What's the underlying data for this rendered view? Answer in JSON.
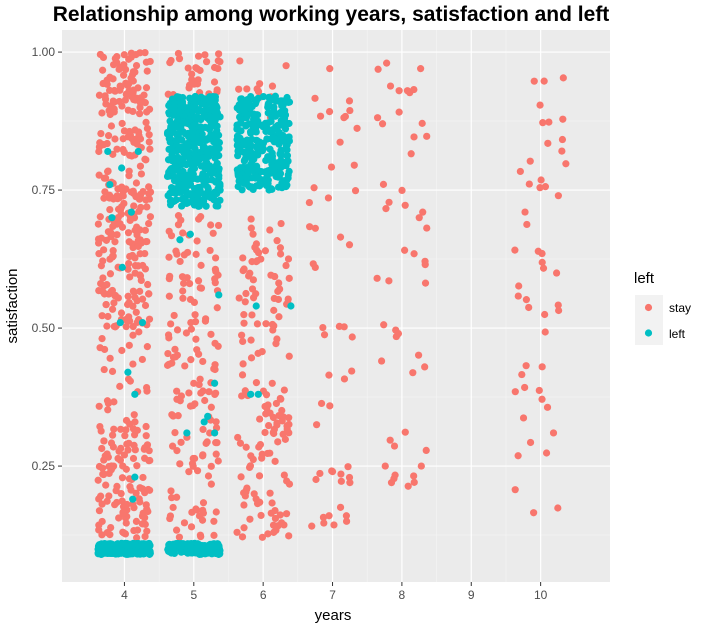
{
  "chart_data": {
    "type": "scatter",
    "title": "Relationship among working years, satisfaction and left",
    "xlabel": "years",
    "ylabel": "satisfaction",
    "xlim": [
      3.1,
      11.0
    ],
    "ylim": [
      0.04,
      1.04
    ],
    "x_ticks": [
      "4",
      "5",
      "6",
      "7",
      "8",
      "9",
      "10"
    ],
    "x_tick_values": [
      4,
      5,
      6,
      7,
      8,
      9,
      10
    ],
    "y_ticks": [
      "0.25",
      "0.50",
      "0.75",
      "1.00"
    ],
    "y_tick_values": [
      0.25,
      0.5,
      0.75,
      1.0
    ],
    "grid": true,
    "panel_background": "#ebebeb",
    "legend": {
      "title": "left",
      "position": "right",
      "entries": [
        {
          "label": "stay",
          "color": "#F8766D"
        },
        {
          "label": "left",
          "color": "#00BFC4"
        }
      ]
    },
    "jitter": 0.38,
    "series": [
      {
        "name": "stay",
        "color": "#F8766D",
        "clusters": [
          {
            "x": 4,
            "n": 300,
            "y_range": [
              0.5,
              1.0
            ]
          },
          {
            "x": 4,
            "n": 120,
            "y_range": [
              0.12,
              0.34
            ]
          },
          {
            "x": 4,
            "n": 25,
            "y_range": [
              0.34,
              0.5
            ]
          },
          {
            "x": 5,
            "n": 30,
            "y_range": [
              0.92,
              1.0
            ]
          },
          {
            "x": 5,
            "n": 150,
            "y_range": [
              0.12,
              0.72
            ]
          },
          {
            "x": 6,
            "n": 15,
            "y_range": [
              0.88,
              0.99
            ]
          },
          {
            "x": 6,
            "n": 150,
            "y_range": [
              0.12,
              0.7
            ]
          },
          {
            "x": 7,
            "n": 45,
            "y_range": [
              0.14,
              0.92
            ]
          },
          {
            "x": 8,
            "n": 40,
            "y_range": [
              0.2,
              0.98
            ]
          },
          {
            "x": 10,
            "n": 50,
            "y_range": [
              0.13,
              1.0
            ]
          }
        ],
        "points": [
          [
            6.96,
            0.97
          ],
          [
            7.78,
            0.98
          ],
          [
            7.96,
            0.93
          ],
          [
            8.08,
            0.93
          ],
          [
            8.27,
            0.97
          ],
          [
            8.28,
            0.25
          ],
          [
            7.76,
            0.25
          ],
          [
            7.85,
            0.22
          ],
          [
            7.25,
            0.22
          ],
          [
            7.2,
            0.16
          ],
          [
            7.0,
            0.24
          ],
          [
            6.95,
            0.16
          ],
          [
            8.3,
            0.71
          ],
          [
            8.25,
            0.7
          ],
          [
            7.95,
            0.49
          ]
        ]
      },
      {
        "name": "left",
        "color": "#00BFC4",
        "clusters": [
          {
            "x": 4,
            "n": 260,
            "y_range": [
              0.09,
              0.11
            ]
          },
          {
            "x": 5,
            "n": 200,
            "y_range": [
              0.09,
              0.11
            ]
          },
          {
            "x": 5,
            "n": 450,
            "y_range": [
              0.72,
              0.92
            ]
          },
          {
            "x": 6,
            "n": 300,
            "y_range": [
              0.75,
              0.92
            ]
          }
        ],
        "points": [
          [
            3.76,
            0.82
          ],
          [
            4.2,
            0.82
          ],
          [
            3.79,
            0.76
          ],
          [
            3.96,
            0.79
          ],
          [
            4.1,
            0.71
          ],
          [
            3.97,
            0.61
          ],
          [
            4.26,
            0.51
          ],
          [
            3.94,
            0.51
          ],
          [
            4.05,
            0.42
          ],
          [
            4.15,
            0.23
          ],
          [
            4.12,
            0.19
          ],
          [
            4.15,
            0.38
          ],
          [
            3.82,
            0.7
          ],
          [
            4.8,
            0.66
          ],
          [
            4.95,
            0.67
          ],
          [
            4.9,
            0.31
          ],
          [
            5.15,
            0.33
          ],
          [
            5.2,
            0.34
          ],
          [
            5.3,
            0.31
          ],
          [
            5.3,
            0.4
          ],
          [
            5.36,
            0.56
          ],
          [
            5.82,
            0.38
          ],
          [
            5.93,
            0.38
          ],
          [
            6.4,
            0.54
          ],
          [
            5.9,
            0.54
          ]
        ]
      }
    ]
  }
}
